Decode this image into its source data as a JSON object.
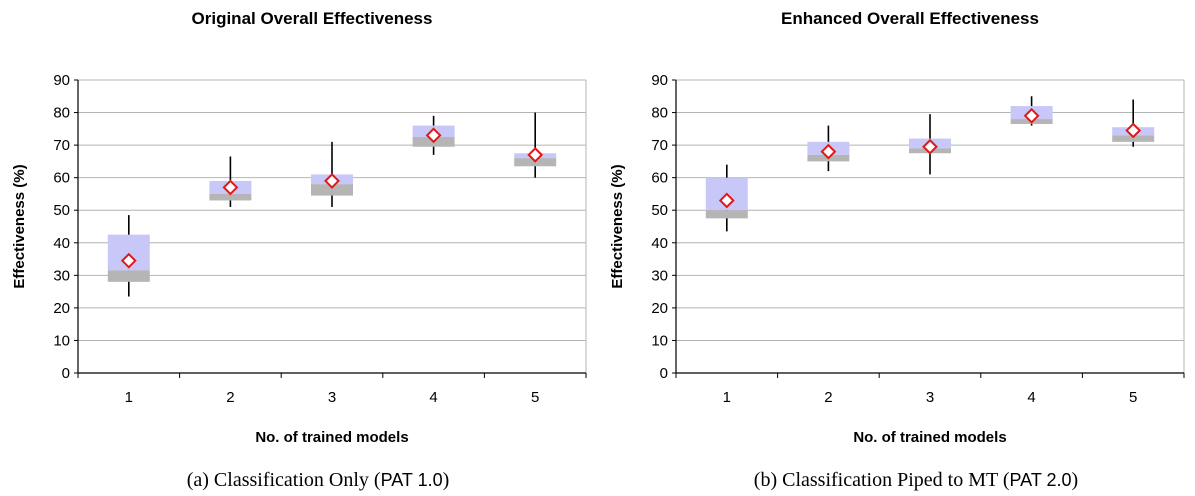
{
  "chart_data": [
    {
      "type": "box",
      "title": "Original Overall Effectiveness",
      "xlabel": "No. of trained models",
      "ylabel": "Effectiveness (%)",
      "ylim": [
        0,
        90
      ],
      "yticks": [
        0,
        10,
        20,
        30,
        40,
        50,
        60,
        70,
        80,
        90
      ],
      "categories": [
        "1",
        "2",
        "3",
        "4",
        "5"
      ],
      "grid": "horizontal",
      "caption": {
        "prefix": "(a)  Classification Only (",
        "code": "PAT 1.0",
        "suffix": ")"
      },
      "colors": {
        "upper_box": "#c8c8f8",
        "lower_box": "#b5b5b5",
        "marker": "#e01818",
        "grid": "#b4b4b4"
      },
      "series": [
        {
          "min": 23.5,
          "q1": 28,
          "median": 31.5,
          "q3": 42.5,
          "max": 48.5,
          "mean": 34.5
        },
        {
          "min": 51,
          "q1": 53,
          "median": 55,
          "q3": 59,
          "max": 66.5,
          "mean": 57
        },
        {
          "min": 51,
          "q1": 54.5,
          "median": 58,
          "q3": 61,
          "max": 71,
          "mean": 59
        },
        {
          "min": 67,
          "q1": 69.5,
          "median": 72.5,
          "q3": 76,
          "max": 79,
          "mean": 73
        },
        {
          "min": 60,
          "q1": 63.5,
          "median": 66,
          "q3": 67.5,
          "max": 80,
          "mean": 67
        }
      ]
    },
    {
      "type": "box",
      "title": "Enhanced Overall Effectiveness",
      "xlabel": "No. of trained models",
      "ylabel": "Effectiveness (%)",
      "ylim": [
        0,
        90
      ],
      "yticks": [
        0,
        10,
        20,
        30,
        40,
        50,
        60,
        70,
        80,
        90
      ],
      "categories": [
        "1",
        "2",
        "3",
        "4",
        "5"
      ],
      "grid": "horizontal",
      "caption": {
        "prefix": "(b)  Classification Piped to MT (",
        "code": "PAT 2.0",
        "suffix": ")"
      },
      "colors": {
        "upper_box": "#c8c8f8",
        "lower_box": "#b5b5b5",
        "marker": "#e01818",
        "grid": "#b4b4b4"
      },
      "series": [
        {
          "min": 43.5,
          "q1": 47.5,
          "median": 50,
          "q3": 60,
          "max": 64,
          "mean": 53
        },
        {
          "min": 62,
          "q1": 65,
          "median": 67,
          "q3": 71,
          "max": 76,
          "mean": 68
        },
        {
          "min": 61,
          "q1": 67.5,
          "median": 69,
          "q3": 72,
          "max": 79.5,
          "mean": 69.5
        },
        {
          "min": 76,
          "q1": 76.5,
          "median": 78,
          "q3": 82,
          "max": 85,
          "mean": 79
        },
        {
          "min": 69.5,
          "q1": 71,
          "median": 73,
          "q3": 75.5,
          "max": 84,
          "mean": 74.5
        }
      ]
    }
  ]
}
